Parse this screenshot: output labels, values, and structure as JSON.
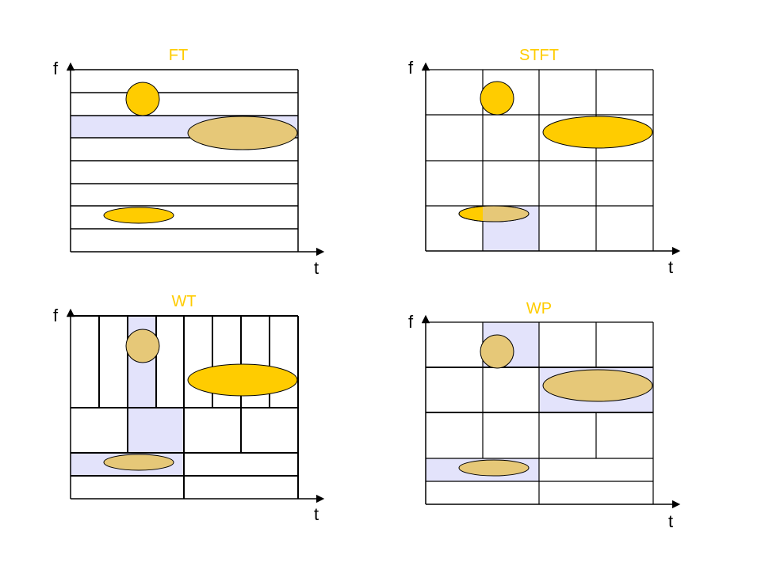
{
  "colors": {
    "title": "#ffcc00",
    "grid": "#000000",
    "highlight": "#e3e3fb",
    "blob": "#ffcc00",
    "blob_overlap": "#e6c878"
  },
  "panels": {
    "ft": {
      "title": "FT",
      "ylabel": "f",
      "xlabel": "t"
    },
    "stft": {
      "title": "STFT",
      "ylabel": "f",
      "xlabel": "t"
    },
    "wt": {
      "title": "WT",
      "ylabel": "f",
      "xlabel": "t"
    },
    "wp": {
      "title": "WP",
      "ylabel": "f",
      "xlabel": "t"
    }
  }
}
